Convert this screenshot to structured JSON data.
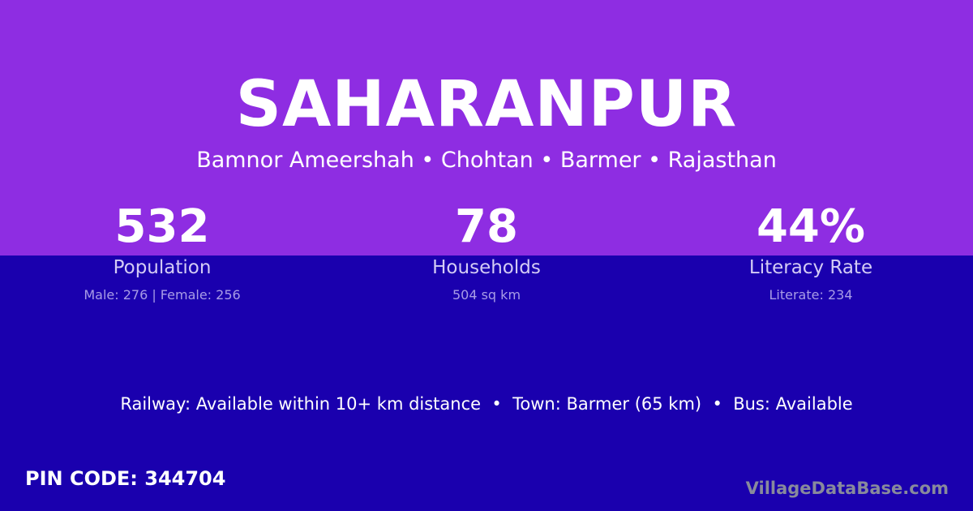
{
  "village": {
    "name": "SAHARANPUR",
    "location": "Bamnor Ameershah • Chohtan • Barmer • Rajasthan"
  },
  "stats": [
    {
      "value": "532",
      "label": "Population",
      "detail": "Male: 276 | Female: 256"
    },
    {
      "value": "78",
      "label": "Households",
      "detail": "504 sq km"
    },
    {
      "value": "44%",
      "label": "Literacy Rate",
      "detail": "Literate: 234"
    }
  ],
  "facilities": "Railway: Available within 10+ km distance  •  Town: Barmer (65 km)  •  Bus: Available",
  "pin_code": "PIN CODE: 344704",
  "brand": "VillageDataBase.com",
  "colors": {
    "top": "#8e2de2",
    "bottom": "#1a00ae"
  }
}
